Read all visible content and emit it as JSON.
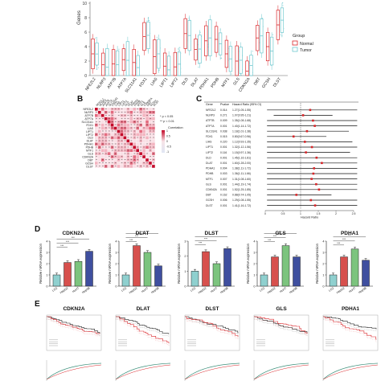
{
  "panels": {
    "A": {
      "label": ""
    },
    "B": {
      "label": "B"
    },
    "C": {
      "label": "C"
    },
    "D": {
      "label": "D"
    },
    "E": {
      "label": "E"
    }
  },
  "colors": {
    "normal": "#d9262a",
    "tumor": "#6fc8cf",
    "corr_high": "#c40a2a",
    "corr_mid": "#f3b4c0",
    "corr_low": "#f9dfe5",
    "bar_lo2": "#8fd0cf",
    "bar_hepg2": "#d7504d",
    "bar_huh7": "#7cc47e",
    "bar_hep3": "#3f4f9f"
  },
  "panelA": {
    "ylabel": "Genes",
    "yticks": [
      "0",
      "2",
      "4",
      "6",
      "8",
      "10"
    ],
    "legend_title": "Group",
    "legend_items": [
      "Normal",
      "Tumor"
    ],
    "genes": [
      "NFE2L2",
      "NLRP3",
      "ATP7B",
      "ATP7A",
      "SLC31A1",
      "FDX1",
      "LIAS",
      "LIPT1",
      "LIPT2",
      "DLD",
      "DLAT",
      "PDHA1",
      "PDHB",
      "MTF1",
      "GLS",
      "CDKN2A",
      "DBT",
      "GCSH",
      "DLST"
    ]
  },
  "panelB": {
    "genes": [
      "NFE2L2",
      "NLRP3",
      "ATP7B",
      "ATP7A",
      "SLC31A1",
      "FDX1",
      "LIAS",
      "LIPT1",
      "LIPT2",
      "DLD",
      "DLAT",
      "PDHA1",
      "PDHB",
      "MTF1",
      "GLS",
      "CDKN2A",
      "DBT",
      "GCSH",
      "DLST"
    ],
    "legend_p1": "* p < 0.05",
    "legend_p2": "** p < 0.01",
    "legend_title": "Correlation",
    "legend_ticks": [
      "1",
      "0.5",
      "0",
      "-0.5",
      "-1"
    ]
  },
  "panelC": {
    "headers": [
      "Gene",
      "Pvalue",
      "Hazard Ratio (95% CI)"
    ],
    "rows": [
      {
        "gene": "NFE2L2",
        "p": "0.014",
        "hr": "1.27(1.05-1.55)"
      },
      {
        "gene": "NLRP3",
        "p": "0.271",
        "hr": "1.07(0.95-1.21)"
      },
      {
        "gene": "ATP7B",
        "p": "0.009",
        "hr": "1.35(1.08-1.68)"
      },
      {
        "gene": "ATP7A",
        "p": "0.001",
        "hr": "1.40(1.14-1.72)"
      },
      {
        "gene": "SLC31A1",
        "p": "0.038",
        "hr": "1.18(1.01-1.38)"
      },
      {
        "gene": "FDX1",
        "p": "0.015",
        "hr": "0.80(0.67-0.96)"
      },
      {
        "gene": "LIAS",
        "p": "0.220",
        "hr": "1.12(0.93-1.35)"
      },
      {
        "gene": "LIPT1",
        "p": "0.001",
        "hr": "1.32(1.12-1.56)"
      },
      {
        "gene": "LIPT2",
        "p": "0.116",
        "hr": "1.15(0.97-1.36)"
      },
      {
        "gene": "DLD",
        "p": "0.001",
        "hr": "1.45(1.16-1.81)"
      },
      {
        "gene": "DLAT",
        "p": "0.001",
        "hr": "1.60(1.28-2.00)"
      },
      {
        "gene": "PDHA1",
        "p": "0.004",
        "hr": "1.38(1.11-1.72)"
      },
      {
        "gene": "PDHB",
        "p": "0.003",
        "hr": "1.36(1.11-1.66)"
      },
      {
        "gene": "MTF1",
        "p": "0.007",
        "hr": "1.31(1.08-1.60)"
      },
      {
        "gene": "GLS",
        "p": "0.001",
        "hr": "1.44(1.19-1.74)"
      },
      {
        "gene": "CDKN2A",
        "p": "0.001",
        "hr": "1.52(1.25-1.85)"
      },
      {
        "gene": "DBT",
        "p": "0.162",
        "hr": "0.88(0.74-1.05)"
      },
      {
        "gene": "GCSH",
        "p": "0.006",
        "hr": "1.29(1.08-1.55)"
      },
      {
        "gene": "DLST",
        "p": "0.001",
        "hr": "1.41(1.16-1.72)"
      }
    ],
    "xlabel": "Hazard Ratio",
    "xticks": [
      "0",
      "0.5",
      "1",
      "1.5",
      "2",
      "2.5"
    ]
  },
  "chart_data": [
    {
      "type": "bar",
      "title": "CDKN2A",
      "ylabel": "Relative mRNA expression",
      "categories": [
        "LO2",
        "HepG2",
        "HuH7",
        "Hep3B"
      ],
      "values": [
        1.0,
        2.1,
        2.2,
        3.1
      ],
      "ylim": [
        0,
        4
      ],
      "sig": [
        "***",
        "***",
        "***"
      ]
    },
    {
      "type": "bar",
      "title": "DLAT",
      "ylabel": "Relative mRNA expression",
      "categories": [
        "LO2",
        "HepG2",
        "HuH7",
        "Hep3B"
      ],
      "values": [
        1.0,
        3.6,
        3.0,
        1.8
      ],
      "ylim": [
        0,
        4
      ],
      "sig": [
        "***",
        "***",
        "***"
      ]
    },
    {
      "type": "bar",
      "title": "DLST",
      "ylabel": "Relative mRNA expression",
      "categories": [
        "LO2",
        "HepG2",
        "HuH7",
        "Hep3B"
      ],
      "values": [
        1.0,
        2.3,
        1.5,
        2.5
      ],
      "ylim": [
        0,
        3
      ],
      "sig": [
        "***",
        "***",
        "***"
      ]
    },
    {
      "type": "bar",
      "title": "GLS",
      "ylabel": "Relative mRNA expression",
      "categories": [
        "LO2",
        "HepG2",
        "HuH7",
        "Hep3B"
      ],
      "values": [
        1.0,
        2.6,
        3.6,
        2.6
      ],
      "ylim": [
        0,
        4
      ],
      "sig": [
        "***",
        "***",
        "***"
      ]
    },
    {
      "type": "bar",
      "title": "PDHA1",
      "ylabel": "Relative mRNA expression",
      "categories": [
        "LO2",
        "HepG2",
        "HuH7",
        "Hep3B"
      ],
      "values": [
        1.0,
        2.6,
        3.3,
        2.3
      ],
      "ylim": [
        0,
        4
      ],
      "sig": [
        "***",
        "***",
        "***"
      ]
    }
  ],
  "panelE": {
    "titles": [
      "CDKN2A",
      "DLAT",
      "DLST",
      "GLS",
      "PDHA1"
    ]
  }
}
